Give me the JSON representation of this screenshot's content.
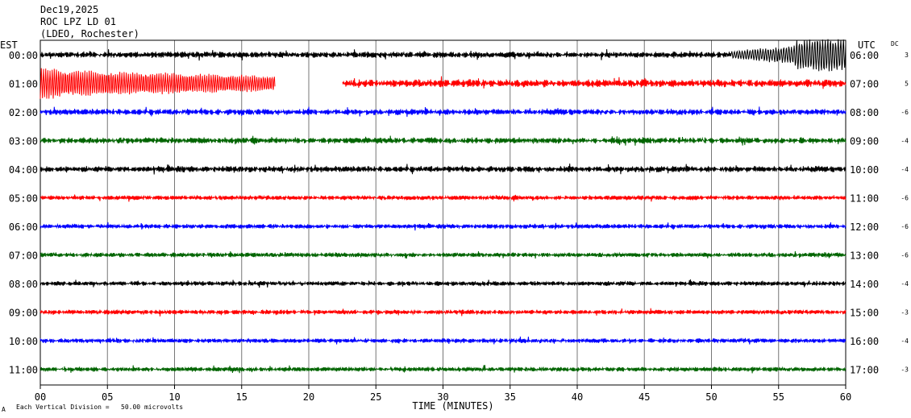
{
  "header": {
    "date": "Dec19,2025",
    "station": "ROC LPZ LD 01",
    "network": "(LDEO, Rochester)"
  },
  "chart_data": {
    "type": "line",
    "title": "",
    "left_axis_label": "EST",
    "right_axis_label": "UTC",
    "dc_label": "DC",
    "xlabel": "TIME (MINUTES)",
    "xlim": [
      0,
      60
    ],
    "x_ticks": [
      "00",
      "05",
      "10",
      "15",
      "20",
      "25",
      "30",
      "35",
      "40",
      "45",
      "50",
      "55",
      "60"
    ],
    "grid": "vertical every 5 minutes",
    "trace_colors": [
      "#000000",
      "#ff0000",
      "#0000ff",
      "#006400"
    ],
    "rows": [
      {
        "est": "00:00",
        "utc": "06:00",
        "dc": "3",
        "color": "#000000",
        "amplitude": 4,
        "quake_start_min": 51.5,
        "quake_amplitude": 18,
        "gaps": []
      },
      {
        "est": "01:00",
        "utc": "07:00",
        "dc": "5",
        "color": "#ff0000",
        "amplitude": 5,
        "burst_end_min": 17.5,
        "burst_amplitude": 18,
        "gaps": [
          [
            17.5,
            22.5
          ]
        ]
      },
      {
        "est": "02:00",
        "utc": "08:00",
        "dc": "-6",
        "color": "#0000ff",
        "amplitude": 4,
        "gaps": []
      },
      {
        "est": "03:00",
        "utc": "09:00",
        "dc": "-4",
        "color": "#006400",
        "amplitude": 4,
        "gaps": []
      },
      {
        "est": "04:00",
        "utc": "10:00",
        "dc": "-4",
        "color": "#000000",
        "amplitude": 4,
        "gaps": []
      },
      {
        "est": "05:00",
        "utc": "11:00",
        "dc": "-6",
        "color": "#ff0000",
        "amplitude": 3,
        "gaps": []
      },
      {
        "est": "06:00",
        "utc": "12:00",
        "dc": "-6",
        "color": "#0000ff",
        "amplitude": 3,
        "gaps": []
      },
      {
        "est": "07:00",
        "utc": "13:00",
        "dc": "-6",
        "color": "#006400",
        "amplitude": 3,
        "gaps": []
      },
      {
        "est": "08:00",
        "utc": "14:00",
        "dc": "-4",
        "color": "#000000",
        "amplitude": 3,
        "gaps": []
      },
      {
        "est": "09:00",
        "utc": "15:00",
        "dc": "-3",
        "color": "#ff0000",
        "amplitude": 3,
        "gaps": []
      },
      {
        "est": "10:00",
        "utc": "16:00",
        "dc": "-4",
        "color": "#0000ff",
        "amplitude": 3,
        "gaps": []
      },
      {
        "est": "11:00",
        "utc": "17:00",
        "dc": "-3",
        "color": "#006400",
        "amplitude": 3,
        "gaps": []
      }
    ]
  },
  "footer": {
    "mark": "A",
    "scale_note": "Each Vertical Division =   50.00 microvolts"
  }
}
